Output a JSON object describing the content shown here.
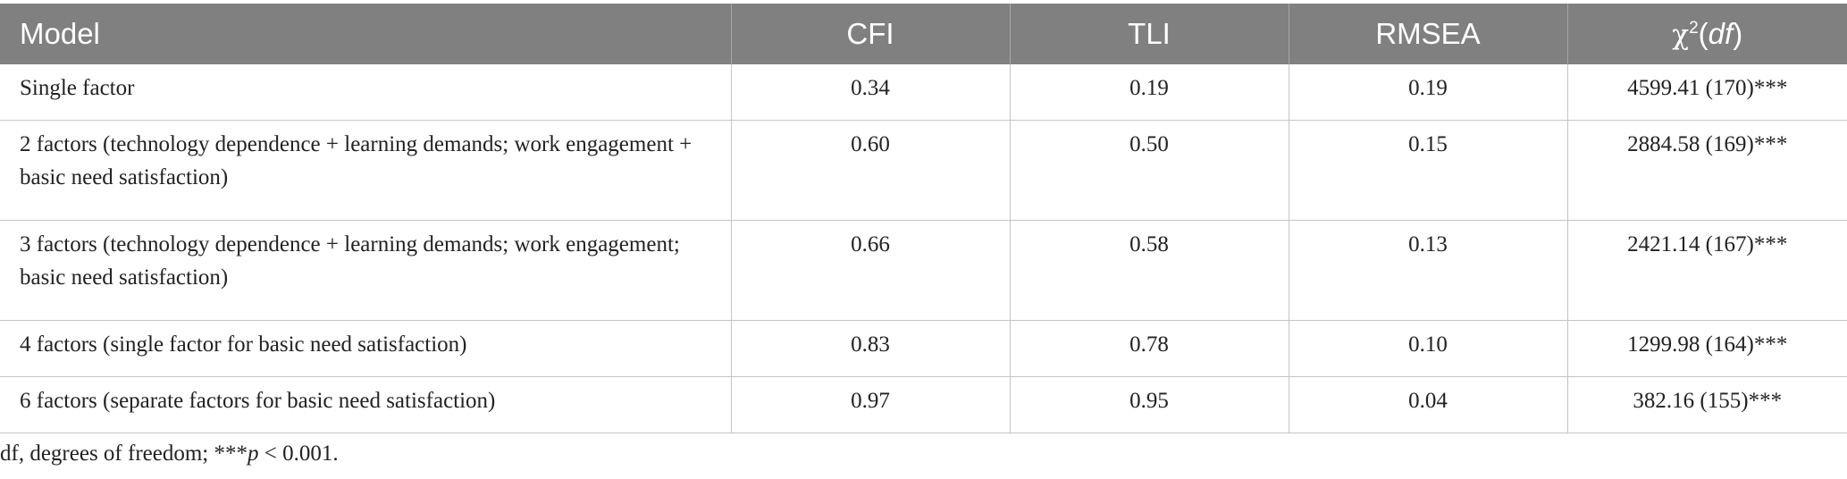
{
  "table": {
    "headers": {
      "model": "Model",
      "cfi": "CFI",
      "tli": "TLI",
      "rmsea": "RMSEA",
      "chi_symbol": "χ",
      "chi_sup": "2",
      "chi_open": "(",
      "chi_df": "df",
      "chi_close": ")"
    },
    "rows": [
      {
        "model": "Single factor",
        "cfi": "0.34",
        "tli": "0.19",
        "rmsea": "0.19",
        "chi": "4599.41 (170)***"
      },
      {
        "model": "2 factors (technology dependence + learning demands; work engagement + basic need satisfaction)",
        "cfi": "0.60",
        "tli": "0.50",
        "rmsea": "0.15",
        "chi": "2884.58 (169)***"
      },
      {
        "model": "3 factors (technology dependence + learning demands; work engagement; basic need satisfaction)",
        "cfi": "0.66",
        "tli": "0.58",
        "rmsea": "0.13",
        "chi": "2421.14 (167)***"
      },
      {
        "model": "4 factors (single factor for basic need satisfaction)",
        "cfi": "0.83",
        "tli": "0.78",
        "rmsea": "0.10",
        "chi": "1299.98 (164)***"
      },
      {
        "model": "6 factors (separate factors for basic need satisfaction)",
        "cfi": "0.97",
        "tli": "0.95",
        "rmsea": "0.04",
        "chi": "382.16 (155)***"
      }
    ]
  },
  "footnote": {
    "prefix": "df, degrees of freedom; ***",
    "p": "p",
    "suffix": " < 0.001."
  }
}
